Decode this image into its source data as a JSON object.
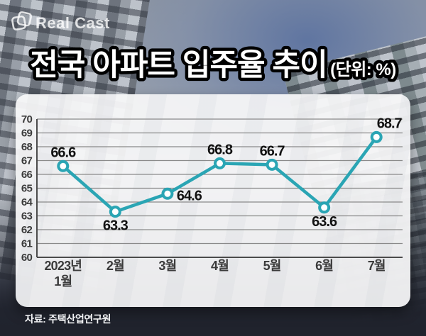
{
  "logo": {
    "text": "Real Cast"
  },
  "title": {
    "main": "전국 아파트 입주율 추이",
    "unit": "(단위: %)"
  },
  "source": "자료: 주택산업연구원",
  "chart_data": {
    "type": "line",
    "title": "전국 아파트 입주율 추이",
    "unit_label": "(단위: %)",
    "categories": [
      "2023년\n1월",
      "2월",
      "3월",
      "4월",
      "5월",
      "6월",
      "7월"
    ],
    "values": [
      66.6,
      63.3,
      64.6,
      66.8,
      66.7,
      63.6,
      68.7
    ],
    "value_label_positions": [
      "top",
      "bottom",
      "right",
      "top",
      "top",
      "bottom",
      "top-right"
    ],
    "ylim": [
      60,
      70
    ],
    "ytick_step": 1,
    "grid": true,
    "legend": "none",
    "source": "자료: 주택산업연구원",
    "colors": {
      "line": "#2aa5b4",
      "marker_fill": "#ffffff",
      "marker_stroke": "#2aa5b4",
      "grid": "#8a8a8a",
      "axis": "#4b4b4b",
      "tick_label": "#3b3b3b",
      "value_label": "#121212",
      "panel_bg": "#f6f6f8",
      "background_dark": "#20232d",
      "title_fill": "#ffffff",
      "title_stroke": "#000000"
    }
  }
}
